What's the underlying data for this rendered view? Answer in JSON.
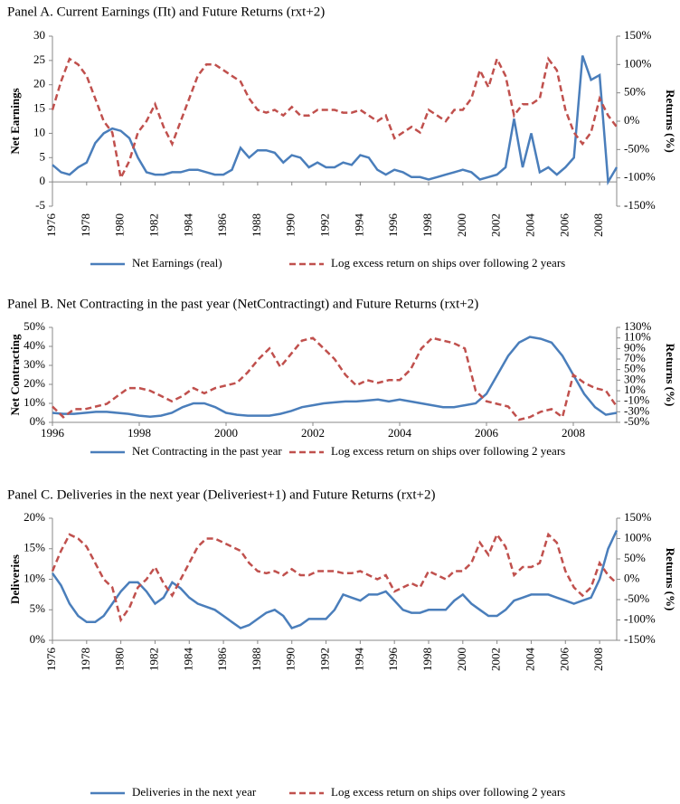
{
  "chart_data": [
    {
      "type": "line",
      "title": "Panel A. Current Earnings (Πt) and Future Returns (rxt+2)",
      "ylabel": "Net Earnings",
      "y2label": "Returns (%)",
      "legend": "bottom",
      "x": [
        1976,
        1976.5,
        1977,
        1977.5,
        1978,
        1978.5,
        1979,
        1979.5,
        1980,
        1980.5,
        1981,
        1981.5,
        1982,
        1982.5,
        1983,
        1983.5,
        1984,
        1984.5,
        1985,
        1985.5,
        1986,
        1986.5,
        1987,
        1987.5,
        1988,
        1988.5,
        1989,
        1989.5,
        1990,
        1990.5,
        1991,
        1991.5,
        1992,
        1992.5,
        1993,
        1993.5,
        1994,
        1994.5,
        1995,
        1995.5,
        1996,
        1996.5,
        1997,
        1997.5,
        1998,
        1998.5,
        1999,
        1999.5,
        2000,
        2000.5,
        2001,
        2001.5,
        2002,
        2002.5,
        2003,
        2003.5,
        2004,
        2004.5,
        2005,
        2005.5,
        2006,
        2006.5,
        2007,
        2007.5,
        2008,
        2008.5,
        2009
      ],
      "xlim": [
        1976,
        2009
      ],
      "xticks": [
        1976,
        1978,
        1980,
        1982,
        1984,
        1986,
        1988,
        1990,
        1992,
        1994,
        1996,
        1998,
        2000,
        2002,
        2004,
        2006,
        2008
      ],
      "ylim": [
        -5,
        30
      ],
      "yticks": [
        -5,
        0,
        5,
        10,
        15,
        20,
        25,
        30
      ],
      "y2lim": [
        -150,
        150
      ],
      "y2ticks": [
        {
          "value": -150,
          "label": "-150%"
        },
        {
          "value": -100,
          "label": "-100%"
        },
        {
          "value": -50,
          "label": "-50%"
        },
        {
          "value": 0,
          "label": "0%"
        },
        {
          "value": 50,
          "label": "50%"
        },
        {
          "value": 100,
          "label": "100%"
        },
        {
          "value": 150,
          "label": "150%"
        }
      ],
      "series": [
        {
          "name": "Net Earnings (real)",
          "color": "#4a7ebb",
          "linestyle": "solid",
          "values": [
            3.5,
            2,
            1.5,
            3,
            4,
            8,
            10,
            11,
            10.5,
            9,
            5,
            2,
            1.5,
            1.5,
            2,
            2,
            2.5,
            2.5,
            2,
            1.5,
            1.5,
            2.5,
            7,
            5,
            6.5,
            6.5,
            6,
            4,
            5.5,
            5,
            3,
            4,
            3,
            3,
            4,
            3.5,
            5.5,
            5,
            2.5,
            1.5,
            2.5,
            2,
            1,
            1,
            0.5,
            1,
            1.5,
            2,
            2.5,
            2,
            0.5,
            1,
            1.5,
            3,
            13,
            3,
            10,
            2,
            3,
            1.5,
            3,
            5,
            26,
            21,
            22,
            0,
            3
          ]
        },
        {
          "name": "Log excess return on ships over following 2 years",
          "color": "#c0504d",
          "linestyle": "dashed",
          "axis": "y2",
          "values": [
            20,
            70,
            110,
            100,
            80,
            40,
            0,
            -20,
            -100,
            -70,
            -20,
            0,
            30,
            -10,
            -40,
            0,
            40,
            80,
            100,
            100,
            90,
            80,
            70,
            40,
            20,
            15,
            20,
            10,
            25,
            10,
            10,
            20,
            20,
            20,
            15,
            15,
            20,
            10,
            0,
            10,
            -30,
            -20,
            -10,
            -20,
            20,
            10,
            0,
            20,
            20,
            40,
            90,
            60,
            110,
            80,
            10,
            30,
            30,
            40,
            110,
            90,
            20,
            -20,
            -40,
            -20,
            40,
            10,
            -10
          ]
        }
      ]
    },
    {
      "type": "line",
      "title": "Panel B. Net Contracting in the past year (NetContractingt) and Future Returns (rxt+2)",
      "ylabel": "Net Contracting",
      "y2label": "Returns (%)",
      "legend": "bottom",
      "x": [
        1996,
        1996.25,
        1996.5,
        1996.75,
        1997,
        1997.25,
        1997.5,
        1997.75,
        1998,
        1998.25,
        1998.5,
        1998.75,
        1999,
        1999.25,
        1999.5,
        1999.75,
        2000,
        2000.25,
        2000.5,
        2000.75,
        2001,
        2001.25,
        2001.5,
        2001.75,
        2002,
        2002.25,
        2002.5,
        2002.75,
        2003,
        2003.25,
        2003.5,
        2003.75,
        2004,
        2004.25,
        2004.5,
        2004.75,
        2005,
        2005.25,
        2005.5,
        2005.75,
        2006,
        2006.25,
        2006.5,
        2006.75,
        2007,
        2007.25,
        2007.5,
        2007.75,
        2008,
        2008.25,
        2008.5,
        2008.75,
        2009
      ],
      "xlim": [
        1996,
        2009
      ],
      "xticks": [
        1996,
        1998,
        2000,
        2002,
        2004,
        2006,
        2008
      ],
      "ylim": [
        0,
        50
      ],
      "yticks": [
        {
          "value": 0,
          "label": "0%"
        },
        {
          "value": 10,
          "label": "10%"
        },
        {
          "value": 20,
          "label": "20%"
        },
        {
          "value": 30,
          "label": "30%"
        },
        {
          "value": 40,
          "label": "40%"
        },
        {
          "value": 50,
          "label": "50%"
        }
      ],
      "y2lim": [
        -50,
        130
      ],
      "y2ticks": [
        {
          "value": -50,
          "label": "-50%"
        },
        {
          "value": -30,
          "label": "-30%"
        },
        {
          "value": -10,
          "label": "-10%"
        },
        {
          "value": 10,
          "label": "10%"
        },
        {
          "value": 30,
          "label": "30%"
        },
        {
          "value": 50,
          "label": "50%"
        },
        {
          "value": 70,
          "label": "70%"
        },
        {
          "value": 90,
          "label": "90%"
        },
        {
          "value": 110,
          "label": "110%"
        },
        {
          "value": 130,
          "label": "130%"
        }
      ],
      "series": [
        {
          "name": "Net Contracting in the past year",
          "color": "#4a7ebb",
          "linestyle": "solid",
          "values": [
            5,
            4.5,
            4.5,
            5,
            5.5,
            5.5,
            5,
            4.5,
            3.5,
            3,
            3.5,
            5,
            8,
            10,
            10,
            8,
            5,
            4,
            3.5,
            3.5,
            3.5,
            4.5,
            6,
            8,
            9,
            10,
            10.5,
            11,
            11,
            11.5,
            12,
            11,
            12,
            11,
            10,
            9,
            8,
            8,
            9,
            10,
            15,
            25,
            35,
            42,
            45,
            44,
            42,
            35,
            25,
            15,
            8,
            4,
            5
          ]
        },
        {
          "name": "Log excess return on ships over following 2 years",
          "color": "#c0504d",
          "linestyle": "dashed",
          "axis": "y2",
          "values": [
            -20,
            -40,
            -25,
            -25,
            -20,
            -15,
            0,
            15,
            15,
            10,
            0,
            -10,
            0,
            15,
            5,
            15,
            20,
            25,
            45,
            70,
            90,
            55,
            80,
            105,
            110,
            90,
            70,
            40,
            20,
            30,
            25,
            30,
            30,
            50,
            90,
            110,
            105,
            100,
            90,
            10,
            -10,
            -15,
            -20,
            -45,
            -40,
            -30,
            -25,
            -40,
            40,
            25,
            15,
            10,
            -20
          ]
        }
      ]
    },
    {
      "type": "line",
      "title": "Panel C. Deliveries in the next year (Deliveriest+1) and Future Returns (rxt+2)",
      "ylabel": "Deliveries",
      "y2label": "Returns (%)",
      "legend": "bottom",
      "x": [
        1976,
        1976.5,
        1977,
        1977.5,
        1978,
        1978.5,
        1979,
        1979.5,
        1980,
        1980.5,
        1981,
        1981.5,
        1982,
        1982.5,
        1983,
        1983.5,
        1984,
        1984.5,
        1985,
        1985.5,
        1986,
        1986.5,
        1987,
        1987.5,
        1988,
        1988.5,
        1989,
        1989.5,
        1990,
        1990.5,
        1991,
        1991.5,
        1992,
        1992.5,
        1993,
        1993.5,
        1994,
        1994.5,
        1995,
        1995.5,
        1996,
        1996.5,
        1997,
        1997.5,
        1998,
        1998.5,
        1999,
        1999.5,
        2000,
        2000.5,
        2001,
        2001.5,
        2002,
        2002.5,
        2003,
        2003.5,
        2004,
        2004.5,
        2005,
        2005.5,
        2006,
        2006.5,
        2007,
        2007.5,
        2008,
        2008.5,
        2009
      ],
      "xlim": [
        1976,
        2009
      ],
      "xticks": [
        1976,
        1978,
        1980,
        1982,
        1984,
        1986,
        1988,
        1990,
        1992,
        1994,
        1996,
        1998,
        2000,
        2002,
        2004,
        2006,
        2008
      ],
      "ylim": [
        0,
        20
      ],
      "yticks": [
        {
          "value": 0,
          "label": "0%"
        },
        {
          "value": 5,
          "label": "5%"
        },
        {
          "value": 10,
          "label": "10%"
        },
        {
          "value": 15,
          "label": "15%"
        },
        {
          "value": 20,
          "label": "20%"
        }
      ],
      "y2lim": [
        -150,
        150
      ],
      "y2ticks": [
        {
          "value": -150,
          "label": "-150%"
        },
        {
          "value": -100,
          "label": "-100%"
        },
        {
          "value": -50,
          "label": "-50%"
        },
        {
          "value": 0,
          "label": "0%"
        },
        {
          "value": 50,
          "label": "50%"
        },
        {
          "value": 100,
          "label": "100%"
        },
        {
          "value": 150,
          "label": "150%"
        }
      ],
      "series": [
        {
          "name": "Deliveries in the next year",
          "color": "#4a7ebb",
          "linestyle": "solid",
          "values": [
            11,
            9,
            6,
            4,
            3,
            3,
            4,
            6,
            8,
            9.5,
            9.5,
            8,
            6,
            7,
            9.5,
            8.5,
            7,
            6,
            5.5,
            5,
            4,
            3,
            2,
            2.5,
            3.5,
            4.5,
            5,
            4,
            2,
            2.5,
            3.5,
            3.5,
            3.5,
            5,
            7.5,
            7,
            6.5,
            7.5,
            7.5,
            8,
            6.5,
            5,
            4.5,
            4.5,
            5,
            5,
            5,
            6.5,
            7.5,
            6,
            5,
            4,
            4,
            5,
            6.5,
            7,
            7.5,
            7.5,
            7.5,
            7,
            6.5,
            6,
            6.5,
            7,
            10,
            15,
            18
          ]
        },
        {
          "name": "Log excess return on ships over following 2 years",
          "color": "#c0504d",
          "linestyle": "dashed",
          "axis": "y2",
          "values": [
            20,
            70,
            110,
            100,
            80,
            40,
            0,
            -20,
            -100,
            -70,
            -20,
            0,
            30,
            -10,
            -40,
            0,
            40,
            80,
            100,
            100,
            90,
            80,
            70,
            40,
            20,
            15,
            20,
            10,
            25,
            10,
            10,
            20,
            20,
            20,
            15,
            15,
            20,
            10,
            0,
            10,
            -30,
            -20,
            -10,
            -20,
            20,
            10,
            0,
            20,
            20,
            40,
            90,
            60,
            110,
            80,
            10,
            30,
            30,
            40,
            110,
            90,
            20,
            -20,
            -40,
            -20,
            40,
            10,
            -10
          ]
        }
      ]
    }
  ]
}
